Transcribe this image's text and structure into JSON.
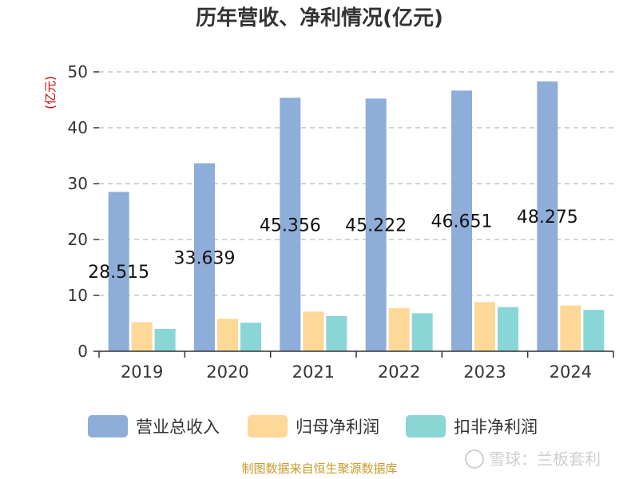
{
  "chart_data": {
    "type": "bar",
    "title": "历年营收、净利情况(亿元)",
    "ylabel": "(亿元)",
    "xlabel": "",
    "categories": [
      "2019",
      "2020",
      "2021",
      "2022",
      "2023",
      "2024"
    ],
    "ylim": [
      0,
      50
    ],
    "yticks": [
      0,
      10,
      20,
      30,
      40,
      50
    ],
    "grid": true,
    "legend_position": "bottom",
    "series": [
      {
        "name": "营业总收入",
        "color": "#8eadd9",
        "values": [
          28.515,
          33.639,
          45.356,
          45.222,
          46.651,
          48.275
        ],
        "labels": [
          "28.515",
          "33.639",
          "45.356",
          "45.222",
          "46.651",
          "48.275"
        ]
      },
      {
        "name": "归母净利润",
        "color": "#fdd896",
        "values": [
          5.2,
          5.8,
          7.1,
          7.7,
          8.8,
          8.2
        ]
      },
      {
        "name": "扣非净利润",
        "color": "#8ad5d6",
        "values": [
          4.0,
          5.1,
          6.3,
          6.8,
          7.9,
          7.4
        ]
      }
    ]
  },
  "source_text": "制图数据来自恒生聚源数据库",
  "watermark": "雪球：兰板套利"
}
